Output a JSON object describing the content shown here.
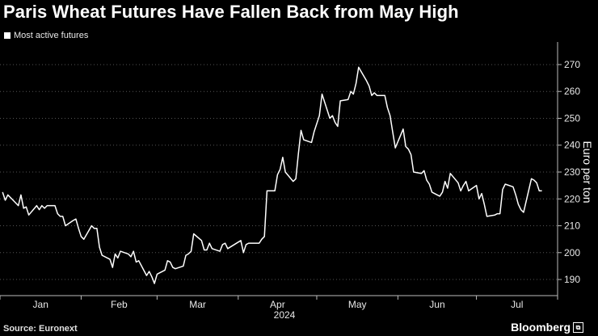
{
  "header": {
    "title": "Paris Wheat Futures Have Fallen Back from May High"
  },
  "legend": {
    "label": "Most active futures"
  },
  "footer": {
    "source": "Source: Euronext",
    "brand": "Bloomberg"
  },
  "colors": {
    "background": "#000000",
    "line": "#ffffff",
    "grid": "#555555"
  },
  "chart_data": {
    "type": "line",
    "title": "Paris Wheat Futures Have Fallen Back from May High",
    "ylabel": "Euro per ton",
    "year_label": "2024",
    "ylim": [
      184,
      276
    ],
    "yticks": [
      190,
      200,
      210,
      220,
      230,
      240,
      250,
      260,
      270
    ],
    "month_labels": [
      "Jan",
      "Feb",
      "Mar",
      "Apr",
      "May",
      "Jun",
      "Jul"
    ],
    "grid": "horizontal dotted",
    "legend_position": "top-left",
    "series": [
      {
        "name": "Most active futures",
        "x": [
          "2024-01-02",
          "2024-01-03",
          "2024-01-04",
          "2024-01-05",
          "2024-01-08",
          "2024-01-09",
          "2024-01-10",
          "2024-01-11",
          "2024-01-12",
          "2024-01-15",
          "2024-01-16",
          "2024-01-17",
          "2024-01-18",
          "2024-01-19",
          "2024-01-22",
          "2024-01-23",
          "2024-01-24",
          "2024-01-25",
          "2024-01-26",
          "2024-01-29",
          "2024-01-30",
          "2024-01-31",
          "2024-02-01",
          "2024-02-02",
          "2024-02-05",
          "2024-02-06",
          "2024-02-07",
          "2024-02-08",
          "2024-02-09",
          "2024-02-12",
          "2024-02-13",
          "2024-02-14",
          "2024-02-15",
          "2024-02-16",
          "2024-02-19",
          "2024-02-20",
          "2024-02-21",
          "2024-02-22",
          "2024-02-23",
          "2024-02-26",
          "2024-02-27",
          "2024-02-28",
          "2024-02-29",
          "2024-03-01",
          "2024-03-04",
          "2024-03-05",
          "2024-03-06",
          "2024-03-07",
          "2024-03-08",
          "2024-03-11",
          "2024-03-12",
          "2024-03-13",
          "2024-03-14",
          "2024-03-15",
          "2024-03-18",
          "2024-03-19",
          "2024-03-20",
          "2024-03-21",
          "2024-03-22",
          "2024-03-25",
          "2024-03-26",
          "2024-03-27",
          "2024-03-28",
          "2024-04-02",
          "2024-04-03",
          "2024-04-04",
          "2024-04-05",
          "2024-04-08",
          "2024-04-09",
          "2024-04-10",
          "2024-04-11",
          "2024-04-12",
          "2024-04-15",
          "2024-04-16",
          "2024-04-17",
          "2024-04-18",
          "2024-04-19",
          "2024-04-22",
          "2024-04-23",
          "2024-04-24",
          "2024-04-25",
          "2024-04-26",
          "2024-04-29",
          "2024-04-30",
          "2024-05-02",
          "2024-05-03",
          "2024-05-06",
          "2024-05-07",
          "2024-05-08",
          "2024-05-09",
          "2024-05-10",
          "2024-05-13",
          "2024-05-14",
          "2024-05-15",
          "2024-05-16",
          "2024-05-17",
          "2024-05-20",
          "2024-05-21",
          "2024-05-22",
          "2024-05-23",
          "2024-05-24",
          "2024-05-27",
          "2024-05-28",
          "2024-05-29",
          "2024-05-30",
          "2024-05-31",
          "2024-06-03",
          "2024-06-04",
          "2024-06-05",
          "2024-06-06",
          "2024-06-07",
          "2024-06-10",
          "2024-06-11",
          "2024-06-12",
          "2024-06-13",
          "2024-06-14",
          "2024-06-17",
          "2024-06-18",
          "2024-06-19",
          "2024-06-20",
          "2024-06-21",
          "2024-06-24",
          "2024-06-25",
          "2024-06-26",
          "2024-06-27",
          "2024-06-28",
          "2024-07-01",
          "2024-07-02",
          "2024-07-03",
          "2024-07-04",
          "2024-07-05",
          "2024-07-08",
          "2024-07-09",
          "2024-07-10",
          "2024-07-11",
          "2024-07-12",
          "2024-07-15",
          "2024-07-16",
          "2024-07-17",
          "2024-07-18",
          "2024-07-19",
          "2024-07-22",
          "2024-07-23",
          "2024-07-24",
          "2024-07-25",
          "2024-07-26"
        ],
        "values": [
          222.5,
          219.5,
          221.5,
          220.5,
          217.5,
          221.5,
          216.5,
          217,
          214,
          217.5,
          216,
          217.5,
          216.5,
          217.5,
          217.5,
          214.5,
          213.5,
          213.5,
          210,
          212,
          212.5,
          209,
          206,
          205,
          210,
          209,
          209,
          202,
          199,
          197.5,
          194.5,
          199.5,
          198,
          200.5,
          199.5,
          198.5,
          200.5,
          196.5,
          197,
          191.5,
          193,
          191,
          188.5,
          192,
          193.5,
          197,
          196.5,
          194.5,
          194,
          195,
          199,
          199.5,
          200.5,
          207,
          204.5,
          201,
          201,
          203.5,
          201.5,
          200.5,
          203,
          203.5,
          201.5,
          204.5,
          200,
          203,
          203.5,
          203.5,
          203.5,
          205,
          206,
          223,
          223,
          229,
          231,
          235.5,
          230,
          226.5,
          227.5,
          237,
          245.5,
          242,
          241,
          245,
          251,
          259,
          250,
          251,
          248.5,
          247,
          256.5,
          257,
          260,
          259,
          263,
          269,
          264,
          262,
          258.5,
          259.5,
          258.5,
          258.5,
          254,
          251,
          245,
          239,
          246,
          239.5,
          238.5,
          236.5,
          230,
          229.5,
          230.5,
          227,
          225.5,
          222.5,
          221,
          222.5,
          226.5,
          224,
          229.5,
          226,
          223,
          225,
          226.5,
          223,
          225,
          220,
          222,
          218,
          213.5,
          214,
          214.5,
          214.5,
          223.5,
          225.5,
          224.5,
          221.5,
          218,
          216,
          215,
          227.5,
          227,
          226,
          223,
          223
        ]
      }
    ]
  }
}
